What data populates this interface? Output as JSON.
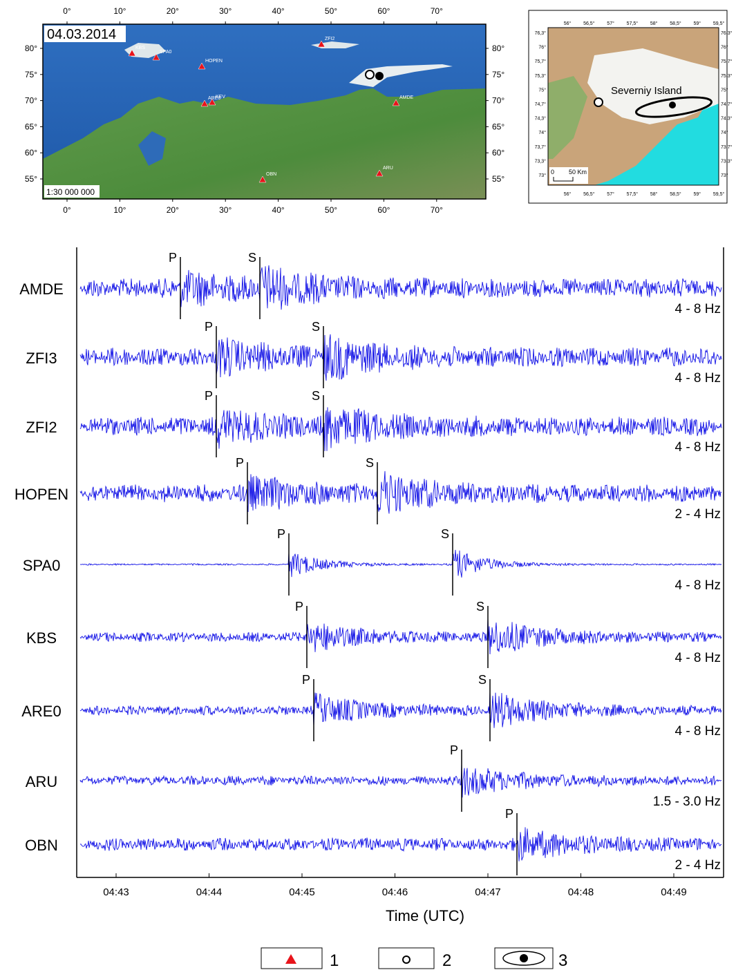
{
  "main_map": {
    "date": "04.03.2014",
    "scale": "1:30 000 000",
    "lon_ticks": [
      "0°",
      "10°",
      "20°",
      "30°",
      "40°",
      "50°",
      "60°",
      "70°"
    ],
    "lat_ticks": [
      "80°",
      "75°",
      "70°",
      "65°",
      "60°",
      "55°"
    ],
    "stations": [
      "KBS",
      "SPA0",
      "HOPEN",
      "ZFI2",
      "ARE0",
      "KEV",
      "AMDE",
      "OBN",
      "ARU"
    ]
  },
  "inset_map": {
    "label": "Severniy Island",
    "scale_zero": "0",
    "scale": "50 Km",
    "lon_ticks": [
      "56°",
      "56,5°",
      "57°",
      "57,5°",
      "58°",
      "58,5°",
      "59°",
      "59,5°"
    ],
    "lat_ticks": [
      "76,3°",
      "76°",
      "75,7°",
      "75,3°",
      "75°",
      "74,7°",
      "74,3°",
      "74°",
      "73,7°",
      "73,3°",
      "73°"
    ]
  },
  "seismograms": {
    "traces": [
      {
        "station": "AMDE",
        "band": "4 - 8 Hz",
        "phases": [
          "P",
          "S"
        ]
      },
      {
        "station": "ZFI3",
        "band": "4 - 8 Hz",
        "phases": [
          "P",
          "S"
        ]
      },
      {
        "station": "ZFI2",
        "band": "4 - 8 Hz",
        "phases": [
          "P",
          "S"
        ]
      },
      {
        "station": "HOPEN",
        "band": "2 - 4 Hz",
        "phases": [
          "P",
          "S"
        ]
      },
      {
        "station": "SPA0",
        "band": "4 - 8 Hz",
        "phases": [
          "P",
          "S"
        ]
      },
      {
        "station": "KBS",
        "band": "4 - 8 Hz",
        "phases": [
          "P",
          "S"
        ]
      },
      {
        "station": "ARE0",
        "band": "4 - 8 Hz",
        "phases": [
          "P",
          "S"
        ]
      },
      {
        "station": "ARU",
        "band": "1.5 - 3.0 Hz",
        "phases": [
          "P"
        ]
      },
      {
        "station": "OBN",
        "band": "2 - 4 Hz",
        "phases": [
          "P"
        ]
      }
    ],
    "time_ticks": [
      "04:43",
      "04:44",
      "04:45",
      "04:46",
      "04:47",
      "04:48",
      "04:49"
    ],
    "x_label": "Time (UTC)"
  },
  "legend": [
    "1",
    "2",
    "3"
  ]
}
